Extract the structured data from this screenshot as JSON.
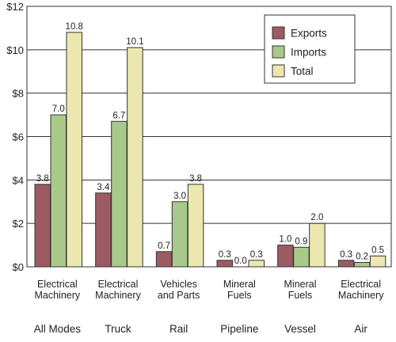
{
  "chart_data": {
    "type": "bar",
    "categories": [
      {
        "mode": "All Modes",
        "label": [
          "Electrical",
          "Machinery"
        ]
      },
      {
        "mode": "Truck",
        "label": [
          "Electrical",
          "Machinery"
        ]
      },
      {
        "mode": "Rail",
        "label": [
          "Vehicles",
          "and Parts"
        ]
      },
      {
        "mode": "Pipeline",
        "label": [
          "Mineral",
          "Fuels"
        ]
      },
      {
        "mode": "Vessel",
        "label": [
          "Mineral",
          "Fuels"
        ]
      },
      {
        "mode": "Air",
        "label": [
          "Electrical",
          "Machinery"
        ]
      }
    ],
    "series": [
      {
        "name": "Exports",
        "values": [
          3.8,
          3.4,
          0.7,
          0.3,
          1.0,
          0.3
        ],
        "labels": [
          "3.8",
          "3.4",
          "0.7",
          "0.3",
          "1.0",
          "0.3"
        ],
        "color": "#9c5b62"
      },
      {
        "name": "Imports",
        "values": [
          7.0,
          6.7,
          3.0,
          0.0,
          0.9,
          0.2
        ],
        "labels": [
          "7.0",
          "6.7",
          "3.0",
          "0.0",
          "0.9",
          "0.2"
        ],
        "color": "#a9c98a"
      },
      {
        "name": "Total",
        "values": [
          10.8,
          10.1,
          3.8,
          0.3,
          2.0,
          0.5
        ],
        "labels": [
          "10.8",
          "10.1",
          "3.8",
          "0.3",
          "2.0",
          "0.5"
        ],
        "color": "#ece7b0"
      }
    ],
    "ylim": [
      0,
      12
    ],
    "yticks": [
      {
        "value": 0,
        "label": "$0"
      },
      {
        "value": 2,
        "label": "$2"
      },
      {
        "value": 4,
        "label": "$4"
      },
      {
        "value": 6,
        "label": "$6"
      },
      {
        "value": 8,
        "label": "$8"
      },
      {
        "value": 10,
        "label": "$10"
      },
      {
        "value": 12,
        "label": "$12"
      }
    ],
    "grid": true,
    "legend": "top-right",
    "title": "",
    "xlabel": "",
    "ylabel": ""
  }
}
